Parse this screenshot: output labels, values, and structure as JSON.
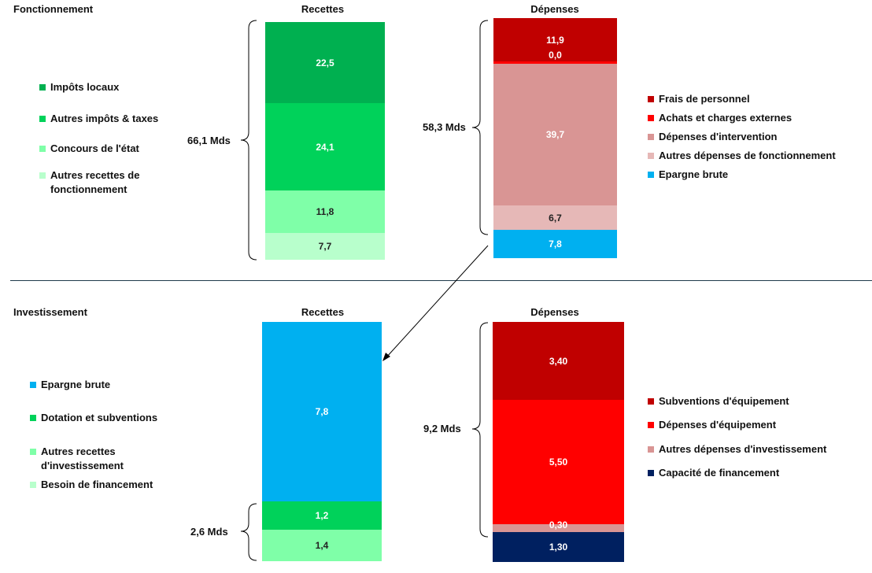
{
  "chart_data": [
    {
      "type": "bar",
      "stacked": true,
      "section": "Fonctionnement",
      "column": "Recettes",
      "total_label": "66,1 Mds",
      "series": [
        {
          "name": "Impôts locaux",
          "value": 22.5,
          "label": "22,5",
          "color": "#00B050"
        },
        {
          "name": "Autres impôts & taxes",
          "value": 24.1,
          "label": "24,1",
          "color": "#00D25A"
        },
        {
          "name": "Concours de l'état",
          "value": 11.8,
          "label": "11,8",
          "color": "#7FFFA8"
        },
        {
          "name": "Autres recettes de fonctionnement",
          "value": 7.7,
          "label": "7,7",
          "color": "#B8FFCC"
        }
      ]
    },
    {
      "type": "bar",
      "stacked": true,
      "section": "Fonctionnement",
      "column": "Dépenses",
      "total_label": "58,3 Mds",
      "series": [
        {
          "name": "Frais de personnel",
          "value": 11.9,
          "label": "11,9",
          "color": "#C00000"
        },
        {
          "name": "Achats et charges externes",
          "value": 0.0,
          "label": "0,0",
          "color": "#FF0000"
        },
        {
          "name": "Dépenses d'intervention",
          "value": 39.7,
          "label": "39,7",
          "color": "#D99594"
        },
        {
          "name": "Autres dépenses de fonctionnement",
          "value": 6.7,
          "label": "6,7",
          "color": "#E6B8B7"
        },
        {
          "name": "Epargne brute",
          "value": 7.8,
          "label": "7,8",
          "color": "#00B0F0"
        }
      ]
    },
    {
      "type": "bar",
      "stacked": true,
      "section": "Investissement",
      "column": "Recettes",
      "total_label": "2,6 Mds",
      "series": [
        {
          "name": "Epargne brute",
          "value": 7.8,
          "label": "7,8",
          "color": "#00B0F0"
        },
        {
          "name": "Dotation et subventions",
          "value": 1.2,
          "label": "1,2",
          "color": "#00D25A"
        },
        {
          "name": "Autres recettes d'investissement",
          "value": 1.4,
          "label": "1,4",
          "color": "#7FFFA8"
        },
        {
          "name": "Besoin de financement",
          "value": 0,
          "label": "",
          "color": "#B8FFCC"
        }
      ]
    },
    {
      "type": "bar",
      "stacked": true,
      "section": "Investissement",
      "column": "Dépenses",
      "total_label": "9,2 Mds",
      "series": [
        {
          "name": "Subventions d'équipement",
          "value": 3.4,
          "label": "3,40",
          "color": "#C00000"
        },
        {
          "name": "Dépenses d'équipement",
          "value": 5.5,
          "label": "5,50",
          "color": "#FF0000"
        },
        {
          "name": "Autres dépenses d'investissement",
          "value": 0.3,
          "label": "0,30",
          "color": "#D99594"
        },
        {
          "name": "Capacité de financement",
          "value": 1.3,
          "label": "1,30",
          "color": "#002060"
        }
      ]
    }
  ],
  "sections": {
    "fonctionnement": "Fonctionnement",
    "investissement": "Investissement"
  },
  "columns": {
    "recettes": "Recettes",
    "depenses": "Dépenses"
  },
  "legends": {
    "fonct_recettes": [
      {
        "label": "Impôts locaux",
        "color": "#00B050"
      },
      {
        "label": "Autres impôts & taxes",
        "color": "#00D25A"
      },
      {
        "label": "Concours de l'état",
        "color": "#7FFFA8"
      },
      {
        "label": "Autres recettes de fonctionnement",
        "color": "#B8FFCC"
      }
    ],
    "fonct_depenses": [
      {
        "label": "Frais de personnel",
        "color": "#C00000"
      },
      {
        "label": "Achats et charges externes",
        "color": "#FF0000"
      },
      {
        "label": "Dépenses d'intervention",
        "color": "#D99594"
      },
      {
        "label": "Autres dépenses de fonctionnement",
        "color": "#E6B8B7"
      },
      {
        "label": "Epargne brute",
        "color": "#00B0F0"
      }
    ],
    "invest_recettes": [
      {
        "label": "Epargne brute",
        "color": "#00B0F0"
      },
      {
        "label": "Dotation et subventions",
        "color": "#00D25A"
      },
      {
        "label": "Autres recettes d'investissement",
        "color": "#7FFFA8"
      },
      {
        "label": "Besoin de financement",
        "color": "#B8FFCC"
      }
    ],
    "invest_depenses": [
      {
        "label": "Subventions d'équipement",
        "color": "#C00000"
      },
      {
        "label": "Dépenses d'équipement",
        "color": "#FF0000"
      },
      {
        "label": "Autres dépenses d'investissement",
        "color": "#D99594"
      },
      {
        "label": "Capacité de financement",
        "color": "#002060"
      }
    ]
  },
  "colors": {
    "divider": "#1F3A4A",
    "arrow": "#000000",
    "brace": "#000000"
  }
}
